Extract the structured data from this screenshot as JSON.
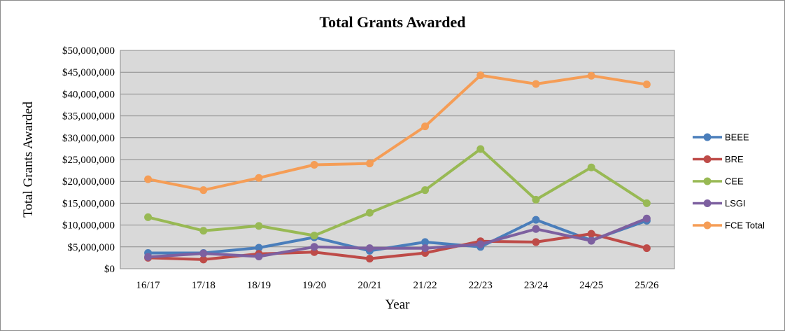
{
  "chart_data": {
    "type": "line",
    "title": "Total Grants Awarded",
    "xlabel": "Year",
    "ylabel": "Total Grants Awarded",
    "ylim": [
      0,
      50000000
    ],
    "yticks": [
      0,
      5000000,
      10000000,
      15000000,
      20000000,
      25000000,
      30000000,
      35000000,
      40000000,
      45000000,
      50000000
    ],
    "ytick_labels": [
      "$0",
      "$5,000,000",
      "$10,000,000",
      "$15,000,000",
      "$20,000,000",
      "$25,000,000",
      "$30,000,000",
      "$35,000,000",
      "$40,000,000",
      "$45,000,000",
      "$50,000,000"
    ],
    "categories": [
      "16/17",
      "17/18",
      "18/19",
      "19/20",
      "20/21",
      "21/22",
      "22/23",
      "23/24",
      "24/25",
      "25/26"
    ],
    "grid": true,
    "legend_position": "right",
    "series": [
      {
        "name": "BEEE",
        "color": "#4a7ebb",
        "values": [
          3600000,
          3600000,
          4800000,
          7200000,
          4100000,
          6100000,
          5000000,
          11200000,
          6500000,
          11000000
        ]
      },
      {
        "name": "BRE",
        "color": "#be4b48",
        "values": [
          2500000,
          2100000,
          3400000,
          3800000,
          2300000,
          3600000,
          6300000,
          6100000,
          8000000,
          4700000
        ]
      },
      {
        "name": "CEE",
        "color": "#98b954",
        "values": [
          11800000,
          8700000,
          9800000,
          7600000,
          12800000,
          18000000,
          27400000,
          15800000,
          23200000,
          15000000
        ]
      },
      {
        "name": "LSGI",
        "color": "#7d60a0",
        "values": [
          2700000,
          3500000,
          2800000,
          5000000,
          4700000,
          4700000,
          5600000,
          9100000,
          6400000,
          11500000
        ]
      },
      {
        "name": "FCE Total",
        "color": "#f59d56",
        "values": [
          20500000,
          18000000,
          20800000,
          23800000,
          24100000,
          32600000,
          44300000,
          42300000,
          44200000,
          42200000
        ]
      }
    ]
  }
}
